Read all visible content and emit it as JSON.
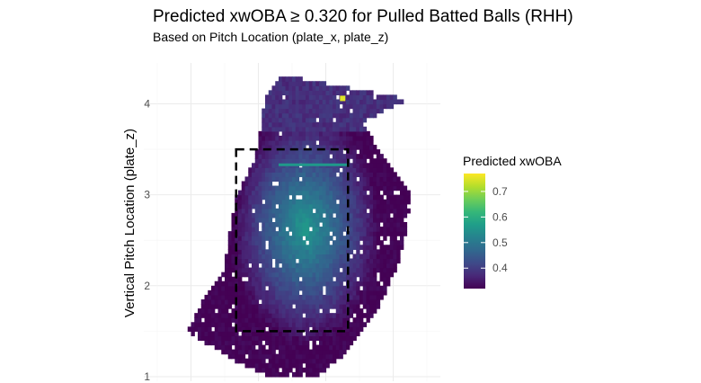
{
  "chart_data": {
    "type": "heatmap",
    "title": "Predicted xwOBA ≥ 0.320 for Pulled Batted Balls (RHH)",
    "subtitle": "Based on Pitch Location (plate_x, plate_z)",
    "ylabel": "Vertical Pitch Location (plate_z)",
    "xlabel": "",
    "x_range": [
      -2.2,
      2.2
    ],
    "y_range": [
      0.95,
      4.45
    ],
    "y_ticks": [
      {
        "value": 1,
        "label": "1"
      },
      {
        "value": 2,
        "label": "2"
      },
      {
        "value": 3,
        "label": "3"
      },
      {
        "value": 4,
        "label": "4"
      }
    ],
    "x_grid": [
      -1.5,
      -0.5,
      0.5,
      1.5
    ],
    "grid": true,
    "legend": {
      "title": "Predicted xwOBA",
      "position": "right",
      "ticks": [
        {
          "value": 0.4,
          "label": "0.4"
        },
        {
          "value": 0.5,
          "label": "0.5"
        },
        {
          "value": 0.6,
          "label": "0.6"
        },
        {
          "value": 0.7,
          "label": "0.7"
        }
      ],
      "range": [
        0.32,
        0.77
      ]
    },
    "strike_zone": {
      "x": [
        -0.83,
        0.83
      ],
      "z": [
        1.5,
        3.5
      ]
    },
    "outline_x_by_z": [
      {
        "z": 1.0,
        "left": -0.3,
        "right": 0.35
      },
      {
        "z": 1.2,
        "left": -0.9,
        "right": 0.7
      },
      {
        "z": 1.5,
        "left": -1.55,
        "right": 1.05
      },
      {
        "z": 1.8,
        "left": -1.35,
        "right": 1.3
      },
      {
        "z": 2.2,
        "left": -1.0,
        "right": 1.55
      },
      {
        "z": 2.6,
        "left": -0.92,
        "right": 1.7
      },
      {
        "z": 3.0,
        "left": -0.82,
        "right": 1.75
      },
      {
        "z": 3.4,
        "left": -0.55,
        "right": 1.35
      },
      {
        "z": 3.8,
        "left": -0.45,
        "right": 1.05
      },
      {
        "z": 4.05,
        "left": -0.4,
        "right": 1.7
      },
      {
        "z": 4.3,
        "left": -0.2,
        "right": 0.0
      }
    ],
    "hot_spot": {
      "x": 0.75,
      "z": 4.06,
      "value": 0.75
    },
    "hot_band": {
      "z": 3.33,
      "x": [
        -0.2,
        0.85
      ],
      "value": 0.56
    },
    "value_range": [
      0.32,
      0.56
    ],
    "peak": {
      "x": 0.2,
      "z": 2.65
    }
  },
  "colors": {
    "viridis": [
      "#440154",
      "#482878",
      "#3e4a89",
      "#31688e",
      "#26828e",
      "#1f9e89",
      "#35b779",
      "#6ece58",
      "#b5de2b",
      "#fde725"
    ],
    "strike_zone": "#000000",
    "grid": "#ebebeb",
    "background": "#ffffff"
  }
}
